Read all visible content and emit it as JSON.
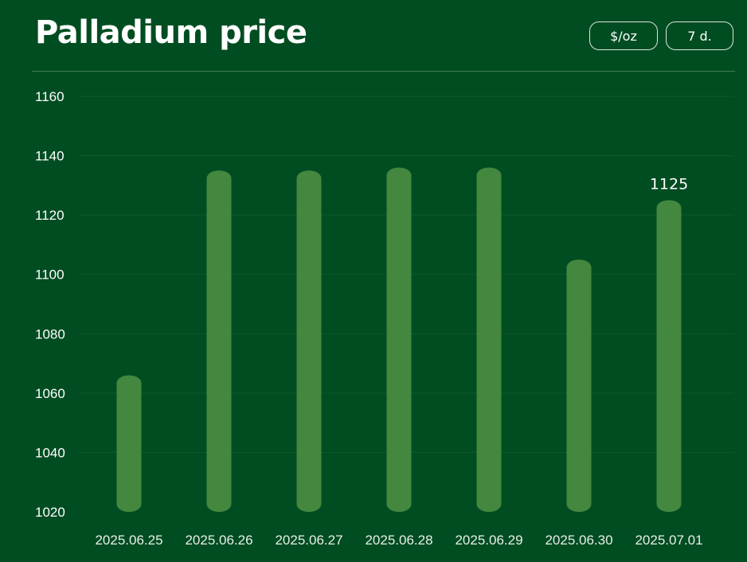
{
  "header": {
    "title": "Palladium price",
    "unit_button": "$/oz",
    "range_button": "7 d."
  },
  "colors": {
    "background": "#014d22",
    "bar": "#44883f",
    "grid": "#0d5a2a",
    "text": "#ffffff"
  },
  "chart_data": {
    "type": "bar",
    "categories": [
      "2025.06.25",
      "2025.06.26",
      "2025.06.27",
      "2025.06.28",
      "2025.06.29",
      "2025.06.30",
      "2025.07.01"
    ],
    "values": [
      1066,
      1135,
      1135,
      1136,
      1136,
      1105,
      1125
    ],
    "ylim": [
      1020,
      1160
    ],
    "yticks": [
      1020,
      1040,
      1060,
      1080,
      1100,
      1120,
      1140,
      1160
    ],
    "data_labels": [
      null,
      null,
      null,
      null,
      null,
      null,
      "1125"
    ],
    "grid": true,
    "legend": "none"
  }
}
